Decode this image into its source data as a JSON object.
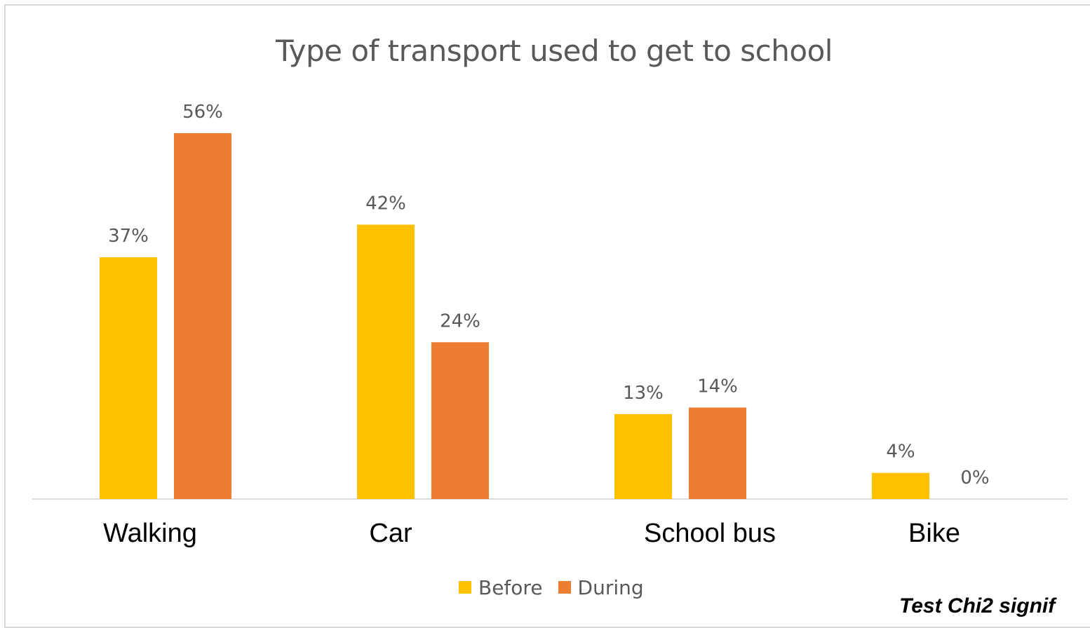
{
  "chart_data": {
    "type": "bar",
    "title": "Type of transport used to get to school",
    "categories": [
      "Walking",
      "Car",
      "School bus",
      "Bike"
    ],
    "series": [
      {
        "name": "Before",
        "values": [
          37,
          42,
          13,
          4
        ],
        "color": "#FFC000"
      },
      {
        "name": "During",
        "values": [
          56,
          24,
          14,
          0
        ],
        "color": "#ED7D31"
      }
    ],
    "value_suffix": "%",
    "ylim": [
      0,
      56
    ],
    "grid": false,
    "legend_placement": "bottom"
  },
  "legend": {
    "before_label": "Before",
    "during_label": "During",
    "before_color": "#FFC000",
    "during_color": "#ED7D31"
  },
  "footnote": "Test Chi2 signif"
}
